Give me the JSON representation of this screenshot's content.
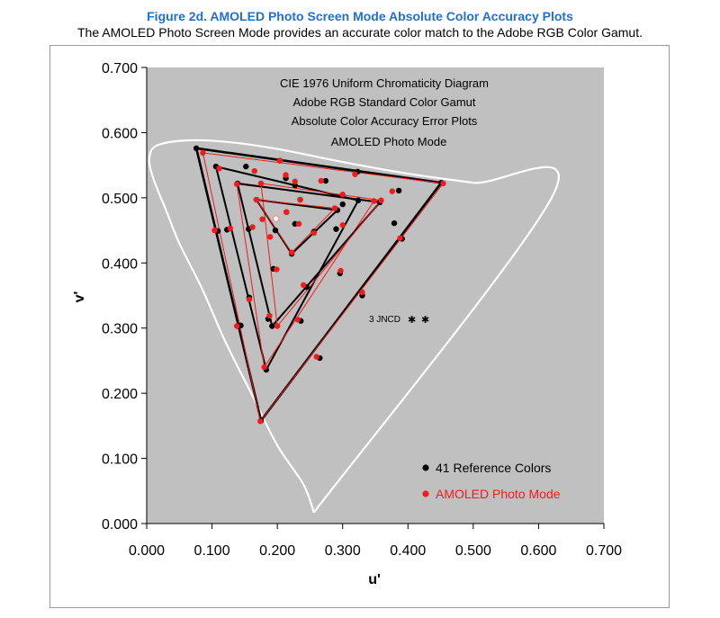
{
  "figure": {
    "title": "Figure 2d.   AMOLED Photo Screen Mode Absolute Color Accuracy Plots",
    "subtitle": "The AMOLED Photo Screen Mode provides an accurate color match to the Adobe RGB Color Gamut."
  },
  "colors": {
    "title": "#1f6fd6",
    "plot_bg": "#c0c0c0",
    "reference": "#000000",
    "measured": "#ee1c1c",
    "locus": "#ffffff"
  },
  "chart_data": {
    "type": "scatter",
    "xlabel": "u'",
    "ylabel": "v'",
    "xlim": [
      0,
      0.7
    ],
    "ylim": [
      0,
      0.7
    ],
    "x_ticks": [
      "0.000",
      "0.100",
      "0.200",
      "0.300",
      "0.400",
      "0.500",
      "0.600",
      "0.700"
    ],
    "y_ticks": [
      "0.000",
      "0.100",
      "0.200",
      "0.300",
      "0.400",
      "0.500",
      "0.600",
      "0.700"
    ],
    "grid": false,
    "legend_position": "bottom-right",
    "annotations": [
      {
        "text": "CIE 1976 Uniform Chromaticity Diagram",
        "color": "#000000"
      },
      {
        "text": "Adobe RGB Standard Color Gamut",
        "color": "#000000"
      },
      {
        "text": "Absolute Color Accuracy Error Plots",
        "color": "#000000"
      },
      {
        "text": "AMOLED Photo Mode",
        "color": "#ee1c1c"
      }
    ],
    "jncd_label": "3 JNCD",
    "white_point": [
      0.198,
      0.468
    ],
    "spectral_locus": [
      [
        0.256,
        0.017
      ],
      [
        0.24,
        0.06
      ],
      [
        0.2,
        0.12
      ],
      [
        0.16,
        0.2
      ],
      [
        0.12,
        0.28
      ],
      [
        0.085,
        0.36
      ],
      [
        0.05,
        0.43
      ],
      [
        0.03,
        0.48
      ],
      [
        0.01,
        0.53
      ],
      [
        0.004,
        0.56
      ],
      [
        0.015,
        0.58
      ],
      [
        0.06,
        0.588
      ],
      [
        0.12,
        0.586
      ],
      [
        0.2,
        0.575
      ],
      [
        0.3,
        0.555
      ],
      [
        0.4,
        0.537
      ],
      [
        0.5,
        0.523
      ],
      [
        0.623,
        0.506
      ],
      [
        0.256,
        0.017
      ]
    ],
    "series": [
      {
        "name": "41 Reference Colors",
        "color": "#000000",
        "points": [
          [
            0.076,
            0.576
          ],
          [
            0.152,
            0.548
          ],
          [
            0.227,
            0.519
          ],
          [
            0.3,
            0.49
          ],
          [
            0.379,
            0.461
          ],
          [
            0.451,
            0.523
          ],
          [
            0.391,
            0.437
          ],
          [
            0.33,
            0.35
          ],
          [
            0.265,
            0.254
          ],
          [
            0.175,
            0.158
          ],
          [
            0.144,
            0.304
          ],
          [
            0.109,
            0.449
          ],
          [
            0.106,
            0.548
          ],
          [
            0.204,
            0.557
          ],
          [
            0.323,
            0.54
          ],
          [
            0.386,
            0.511
          ],
          [
            0.324,
            0.496
          ],
          [
            0.296,
            0.384
          ],
          [
            0.236,
            0.311
          ],
          [
            0.183,
            0.236
          ],
          [
            0.186,
            0.314
          ],
          [
            0.157,
            0.347
          ],
          [
            0.123,
            0.451
          ],
          [
            0.139,
            0.522
          ],
          [
            0.213,
            0.53
          ],
          [
            0.274,
            0.526
          ],
          [
            0.357,
            0.493
          ],
          [
            0.29,
            0.452
          ],
          [
            0.245,
            0.363
          ],
          [
            0.192,
            0.303
          ],
          [
            0.194,
            0.391
          ],
          [
            0.156,
            0.452
          ],
          [
            0.168,
            0.497
          ],
          [
            0.235,
            0.497
          ],
          [
            0.292,
            0.481
          ],
          [
            0.256,
            0.448
          ],
          [
            0.222,
            0.414
          ],
          [
            0.197,
            0.45
          ],
          [
            0.214,
            0.478
          ],
          [
            0.227,
            0.46
          ],
          [
            0.198,
            0.468
          ]
        ]
      },
      {
        "name": "AMOLED Photo Mode",
        "color": "#ee1c1c",
        "points": [
          [
            0.086,
            0.569
          ],
          [
            0.111,
            0.545
          ],
          [
            0.165,
            0.541
          ],
          [
            0.227,
            0.525
          ],
          [
            0.3,
            0.505
          ],
          [
            0.454,
            0.522
          ],
          [
            0.388,
            0.438
          ],
          [
            0.33,
            0.355
          ],
          [
            0.26,
            0.256
          ],
          [
            0.174,
            0.157
          ],
          [
            0.138,
            0.303
          ],
          [
            0.104,
            0.45
          ],
          [
            0.138,
            0.521
          ],
          [
            0.204,
            0.557
          ],
          [
            0.319,
            0.536
          ],
          [
            0.376,
            0.51
          ],
          [
            0.348,
            0.495
          ],
          [
            0.297,
            0.388
          ],
          [
            0.231,
            0.313
          ],
          [
            0.18,
            0.24
          ],
          [
            0.188,
            0.319
          ],
          [
            0.157,
            0.344
          ],
          [
            0.128,
            0.453
          ],
          [
            0.175,
            0.522
          ],
          [
            0.213,
            0.535
          ],
          [
            0.267,
            0.526
          ],
          [
            0.359,
            0.496
          ],
          [
            0.3,
            0.458
          ],
          [
            0.24,
            0.366
          ],
          [
            0.2,
            0.303
          ],
          [
            0.199,
            0.39
          ],
          [
            0.162,
            0.455
          ],
          [
            0.168,
            0.497
          ],
          [
            0.235,
            0.497
          ],
          [
            0.288,
            0.484
          ],
          [
            0.256,
            0.446
          ],
          [
            0.222,
            0.416
          ],
          [
            0.189,
            0.44
          ],
          [
            0.214,
            0.478
          ],
          [
            0.233,
            0.46
          ],
          [
            0.177,
            0.467
          ]
        ]
      }
    ]
  }
}
